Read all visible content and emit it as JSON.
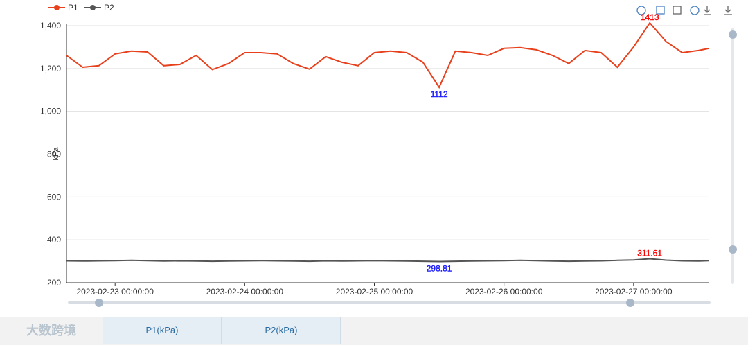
{
  "chart_data": {
    "type": "line",
    "y_label": "kPa",
    "x": [
      "2023-02-22 15:00:00",
      "2023-02-22 18:00:00",
      "2023-02-22 21:00:00",
      "2023-02-23 00:00:00",
      "2023-02-23 03:00:00",
      "2023-02-23 06:00:00",
      "2023-02-23 09:00:00",
      "2023-02-23 12:00:00",
      "2023-02-23 15:00:00",
      "2023-02-23 18:00:00",
      "2023-02-23 21:00:00",
      "2023-02-24 00:00:00",
      "2023-02-24 03:00:00",
      "2023-02-24 06:00:00",
      "2023-02-24 09:00:00",
      "2023-02-24 12:00:00",
      "2023-02-24 15:00:00",
      "2023-02-24 18:00:00",
      "2023-02-24 21:00:00",
      "2023-02-25 00:00:00",
      "2023-02-25 03:00:00",
      "2023-02-25 06:00:00",
      "2023-02-25 09:00:00",
      "2023-02-25 12:00:00",
      "2023-02-25 15:00:00",
      "2023-02-25 18:00:00",
      "2023-02-25 21:00:00",
      "2023-02-26 00:00:00",
      "2023-02-26 03:00:00",
      "2023-02-26 06:00:00",
      "2023-02-26 09:00:00",
      "2023-02-26 12:00:00",
      "2023-02-26 15:00:00",
      "2023-02-26 18:00:00",
      "2023-02-26 21:00:00",
      "2023-02-27 00:00:00",
      "2023-02-27 03:00:00",
      "2023-02-27 06:00:00",
      "2023-02-27 09:00:00",
      "2023-02-27 12:00:00",
      "2023-02-27 14:00:00"
    ],
    "series": [
      {
        "name": "P1",
        "color": "#e8401c",
        "values": [
          1261,
          1206,
          1213,
          1268,
          1281,
          1277,
          1213,
          1219,
          1261,
          1195,
          1223,
          1274,
          1274,
          1268,
          1223,
          1197,
          1255,
          1229,
          1213,
          1274,
          1281,
          1274,
          1229,
          1112,
          1281,
          1274,
          1261,
          1294,
          1297,
          1287,
          1261,
          1223,
          1284,
          1274,
          1206,
          1300,
          1413,
          1326,
          1274,
          1284,
          1294
        ]
      },
      {
        "name": "P2",
        "color": "#555555",
        "values": [
          302,
          301,
          302,
          303,
          304,
          303,
          301,
          302,
          301,
          300,
          301,
          302,
          303,
          302,
          301,
          300,
          302,
          301,
          302,
          303,
          302,
          301,
          300,
          298.81,
          300,
          301,
          302,
          303,
          304,
          303,
          301,
          300,
          301,
          302,
          304,
          306,
          311.61,
          305,
          302,
          301,
          303
        ]
      }
    ],
    "xlim": [
      "2023-02-22 15:00:00",
      "2023-02-27 14:00:00"
    ],
    "xticks": [
      "2023-02-23 00:00:00",
      "2023-02-24 00:00:00",
      "2023-02-25 00:00:00",
      "2023-02-26 00:00:00",
      "2023-02-27 00:00:00"
    ],
    "ylim": [
      200,
      1400
    ],
    "yticks": [
      200,
      400,
      600,
      800,
      {
        "value": 1000,
        "label": "1,000"
      },
      {
        "value": 1200,
        "label": "1,200"
      },
      {
        "value": 1400,
        "label": "1,400"
      }
    ],
    "grid": true,
    "legend": "top-left"
  },
  "tabs": {
    "logo": "大数跨境",
    "items": [
      "P1(kPa)",
      "P2(kPa)"
    ]
  }
}
